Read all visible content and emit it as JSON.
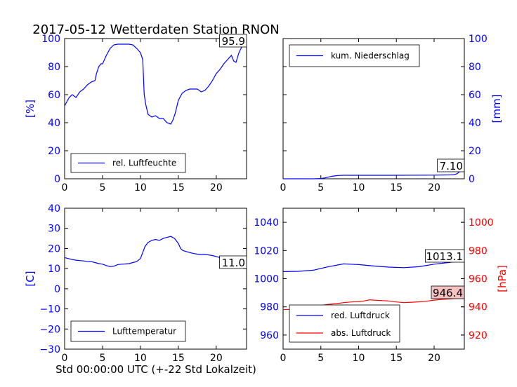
{
  "title": "2017-05-12 Wetterdaten Station RNON",
  "xlabel": "Std 00:00:00 UTC (+-22 Std Lokalzeit)",
  "colors": {
    "blue": "#0000ff",
    "red": "#ff0000",
    "annot_red_bg": "#f4c2c2"
  },
  "chart_data": [
    {
      "id": "humidity",
      "type": "line",
      "ylabel": "[%]",
      "xlim": [
        0,
        24
      ],
      "ylim": [
        0,
        100
      ],
      "xticks": [
        "0",
        "5",
        "10",
        "15",
        "20"
      ],
      "yticks": [
        "0",
        "20",
        "40",
        "60",
        "80",
        "100"
      ],
      "legend": "bottom-left",
      "annotation": "95.9",
      "series": [
        {
          "name": "rel. Luftfeuchte",
          "color": "#0000ff",
          "x": [
            0,
            0.3,
            0.6,
            1,
            1.5,
            2,
            2.5,
            3,
            3.5,
            4,
            4.2,
            4.5,
            4.8,
            5,
            5.5,
            6,
            6.5,
            7,
            7.5,
            8,
            8.5,
            9,
            9.5,
            10,
            10.3,
            10.5,
            10.7,
            11,
            11.5,
            12,
            12.5,
            13,
            13.5,
            14,
            14.3,
            14.6,
            15,
            15.5,
            16,
            16.5,
            17,
            17.5,
            18,
            18.5,
            19,
            19.5,
            20,
            20.5,
            21,
            21.5,
            22,
            22.3,
            22.6,
            23,
            23.5,
            24
          ],
          "values": [
            52,
            55,
            58,
            60,
            58,
            62,
            64,
            67,
            69,
            70,
            75,
            80,
            82,
            82,
            88,
            93,
            95.5,
            96,
            96,
            96,
            96,
            95.5,
            93,
            90,
            85,
            60,
            53,
            46,
            44,
            45,
            43,
            43,
            40,
            39,
            42,
            47,
            56,
            61,
            63,
            64,
            64,
            64,
            62,
            63,
            66,
            70,
            75,
            78,
            82,
            85,
            88,
            84,
            83,
            90,
            95.5,
            95.9
          ]
        }
      ]
    },
    {
      "id": "precip",
      "type": "line",
      "ylabel": "[mm]",
      "xlim": [
        0,
        24
      ],
      "ylim": [
        0,
        100
      ],
      "xticks": [
        "0",
        "5",
        "10",
        "15",
        "20"
      ],
      "yticks": [
        "0",
        "20",
        "40",
        "60",
        "80",
        "100"
      ],
      "legend": "top-left",
      "annotation": "7.10",
      "series": [
        {
          "name": "kum. Niederschlag",
          "color": "#0000ff",
          "x": [
            0,
            4,
            5,
            5.5,
            6,
            6.5,
            7,
            7.5,
            8,
            10,
            15,
            20,
            22.5,
            23,
            23.5,
            24
          ],
          "values": [
            0,
            0,
            0.2,
            0.6,
            1.2,
            1.8,
            2.2,
            2.4,
            2.5,
            2.5,
            2.5,
            2.6,
            2.8,
            3.5,
            5.5,
            7.1
          ]
        }
      ]
    },
    {
      "id": "temperature",
      "type": "line",
      "ylabel": "[C]",
      "xlim": [
        0,
        24
      ],
      "ylim": [
        -30,
        40
      ],
      "xticks": [
        "0",
        "5",
        "10",
        "15",
        "20"
      ],
      "yticks": [
        "−30",
        "−20",
        "−10",
        "0",
        "10",
        "20",
        "30",
        "40"
      ],
      "legend": "bottom-left",
      "annotation": "11.0",
      "series": [
        {
          "name": "Lufttemperatur",
          "color": "#0000ff",
          "x": [
            0,
            0.5,
            1,
            1.5,
            2,
            2.5,
            3,
            3.5,
            4,
            4.5,
            5,
            5.5,
            6,
            6.5,
            7,
            7.5,
            8,
            8.5,
            9,
            9.5,
            10,
            10.3,
            10.6,
            11,
            11.5,
            12,
            12.5,
            13,
            13.5,
            14,
            14.5,
            15,
            15.3,
            15.6,
            16,
            16.5,
            17,
            17.5,
            18,
            18.5,
            19,
            19.5,
            20,
            20.5,
            21,
            21.5,
            22,
            22.5,
            23,
            23.5,
            24
          ],
          "values": [
            15.5,
            15,
            14.5,
            14.2,
            14,
            13.8,
            13.6,
            13.5,
            13,
            12.5,
            12.2,
            11.5,
            11,
            11.2,
            12,
            12.2,
            12.3,
            12.5,
            13,
            13.5,
            15,
            18,
            21,
            23,
            24,
            24.5,
            24,
            25,
            25.5,
            26,
            25,
            22.5,
            20,
            19,
            18.5,
            18,
            17.5,
            17.2,
            17,
            17,
            16.8,
            16.5,
            16,
            15.5,
            14.5,
            13.8,
            13,
            12.5,
            12,
            11.5,
            11.0
          ]
        }
      ]
    },
    {
      "id": "pressure",
      "type": "line",
      "ylabel": "[hPa]",
      "xlim": [
        0,
        24
      ],
      "ylim": [
        950,
        1050
      ],
      "ylim_right": [
        910,
        1010
      ],
      "xticks": [
        "0",
        "5",
        "10",
        "15",
        "20"
      ],
      "yticks": [
        "960",
        "980",
        "1000",
        "1020",
        "1040"
      ],
      "yticks_right": [
        "920",
        "940",
        "960",
        "980",
        "1000"
      ],
      "legend": "bottom-left",
      "annotation": "1013.1",
      "annotation2": "946.4",
      "series": [
        {
          "name": "red. Luftdruck",
          "color": "#0000ff",
          "axis": "left",
          "x": [
            0,
            2,
            4,
            6,
            8,
            10,
            12,
            14,
            16,
            18,
            20,
            22,
            24
          ],
          "values": [
            1005,
            1005.2,
            1006,
            1008.5,
            1010.5,
            1010,
            1009,
            1008.2,
            1007.8,
            1008.5,
            1010.3,
            1011.5,
            1013.1
          ]
        },
        {
          "name": "abs. Luftdruck",
          "color": "#ff0000",
          "axis": "right",
          "x": [
            0,
            1,
            2,
            3,
            4,
            5,
            6,
            7,
            8,
            9,
            10,
            10.5,
            11,
            11.5,
            12,
            13,
            14,
            15,
            16,
            17,
            18,
            19,
            20,
            21,
            22,
            23,
            24
          ],
          "values": [
            938,
            938.2,
            938.5,
            939.5,
            940.2,
            941,
            941.8,
            942.3,
            943,
            943.5,
            943.8,
            944,
            944.5,
            945,
            944.8,
            944.5,
            944.2,
            943.5,
            943,
            943.3,
            943.6,
            944,
            944.8,
            945.3,
            945.6,
            946,
            946.4
          ]
        }
      ]
    }
  ]
}
